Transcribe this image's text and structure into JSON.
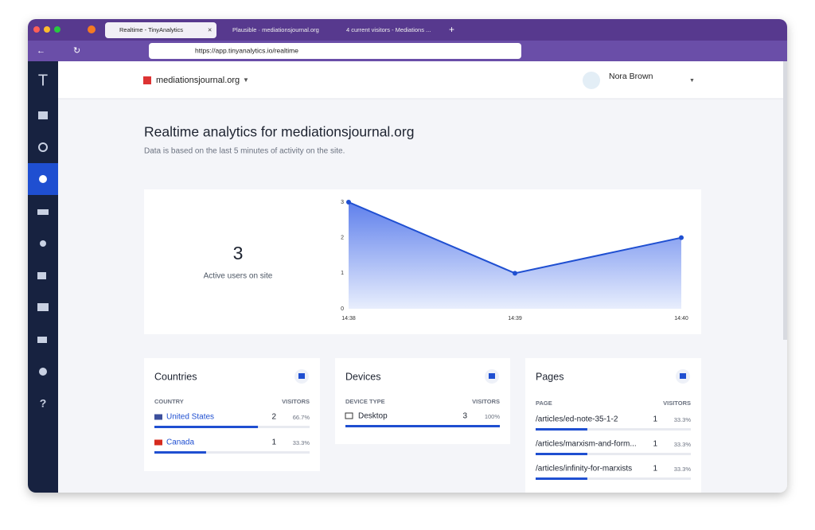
{
  "browser": {
    "tabs": [
      "Realtime - TinyAnalytics",
      "Plausible · mediationsjournal.org",
      "4 current visitors - Mediations ..."
    ],
    "url": "https://app.tinyanalytics.io/realtime"
  },
  "sidebar": {
    "logo": "T",
    "help": "?"
  },
  "header": {
    "site": "mediationsjournal.org",
    "user": "Nora Brown"
  },
  "page": {
    "title": "Realtime analytics for mediationsjournal.org",
    "subtitle": "Data is based on the last 5 minutes of activity on the site."
  },
  "active": {
    "count": "3",
    "label": "Active users on site"
  },
  "chart": {
    "type": "line",
    "x": [
      "14:38",
      "14:39",
      "14:40"
    ],
    "values": [
      3,
      1,
      2
    ],
    "ylim": [
      0,
      3
    ],
    "yticks": [
      0,
      1,
      2,
      3
    ],
    "color": "#1f4fd1"
  },
  "cards": [
    {
      "title": "Countries",
      "columns": [
        "COUNTRY",
        "VISITORS"
      ],
      "rows": [
        {
          "name": "United States",
          "visitors": 2,
          "percent": {
            "value": 66.7,
            "label": "66.7%"
          }
        },
        {
          "name": "Canada",
          "visitors": 1,
          "percent": {
            "value": 33.3,
            "label": "33.3%"
          }
        }
      ]
    },
    {
      "title": "Devices",
      "columns": [
        "DEVICE TYPE",
        "VISITORS"
      ],
      "rows": [
        {
          "name": "Desktop",
          "visitors": 3,
          "percent": {
            "value": 100,
            "label": "100%"
          }
        }
      ]
    },
    {
      "title": "Pages",
      "columns": [
        "PAGE",
        "VISITORS"
      ],
      "rows": [
        {
          "name": "/articles/ed-note-35-1-2",
          "visitors": 1,
          "percent": {
            "value": 33.3,
            "label": "33.3%"
          }
        },
        {
          "name": "/articles/marxism-and-form...",
          "visitors": 1,
          "percent": {
            "value": 33.3,
            "label": "33.3%"
          }
        },
        {
          "name": "/articles/infinity-for-marxists",
          "visitors": 1,
          "percent": {
            "value": 33.3,
            "label": "33.3%"
          }
        }
      ]
    }
  ]
}
